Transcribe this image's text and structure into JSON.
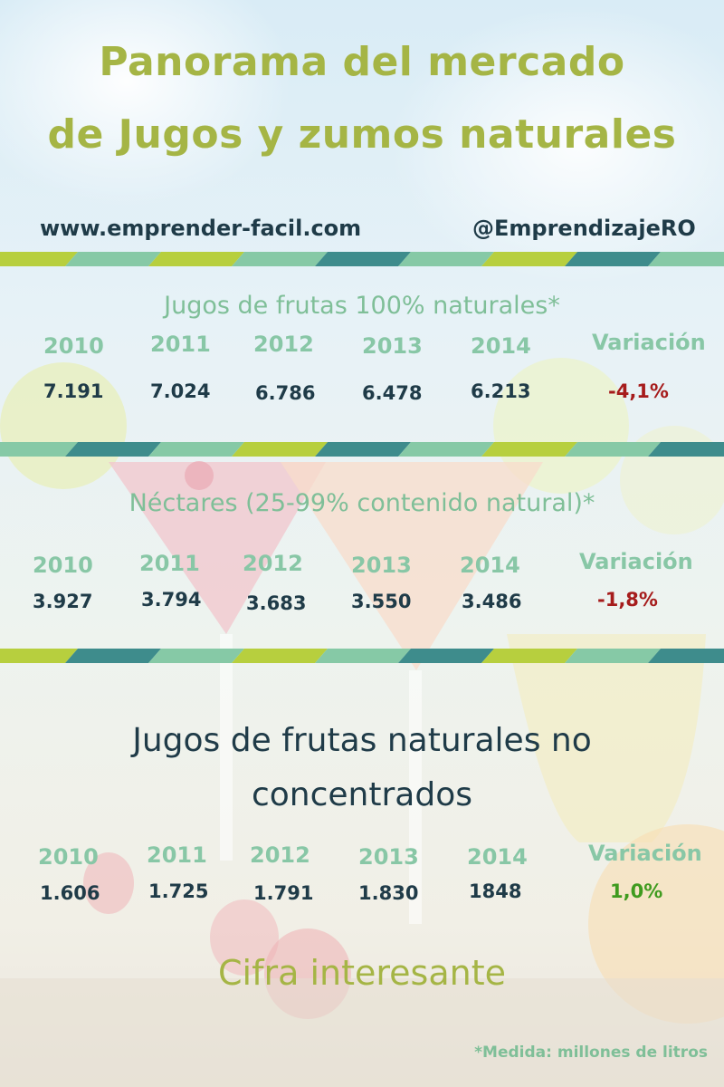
{
  "header": {
    "title_line1": "Panorama del mercado",
    "title_line2": "de Jugos y zumos naturales",
    "website": "www.emprender-facil.com",
    "handle": "@EmprendizajeRO"
  },
  "colors": {
    "title": "#a5b545",
    "dark_text": "#1f3b48",
    "label_green": "#88c7a6",
    "negative": "#a61c1c",
    "positive": "#3f9b1f",
    "stripe_colors": [
      "#b7cf3e",
      "#86c9a6",
      "#3e8c8c"
    ]
  },
  "chart_data": [
    {
      "type": "table",
      "title": "Jugos de frutas 100% naturales*",
      "years": [
        "2010",
        "2011",
        "2012",
        "2013",
        "2014"
      ],
      "values": [
        "7.191",
        "7.024",
        "6.786",
        "6.478",
        "6.213"
      ],
      "variation_label": "Variación",
      "variation": "-4,1%"
    },
    {
      "type": "table",
      "title": "Néctares (25-99% contenido natural)*",
      "years": [
        "2010",
        "2011",
        "2012",
        "2013",
        "2014"
      ],
      "values": [
        "3.927",
        "3.794",
        "3.683",
        "3.550",
        "3.486"
      ],
      "variation_label": "Variación",
      "variation": "-1,8%"
    },
    {
      "type": "table",
      "title_line1": "Jugos de frutas naturales no",
      "title_line2": "concentrados",
      "years": [
        "2010",
        "2011",
        "2012",
        "2013",
        "2014"
      ],
      "values": [
        "1.606",
        "1.725",
        "1.791",
        "1.830",
        "1848"
      ],
      "variation_label": "Variación",
      "variation": "1,0%"
    }
  ],
  "footer": {
    "title": "Cifra interesante",
    "note": "*Medida: millones de litros"
  }
}
